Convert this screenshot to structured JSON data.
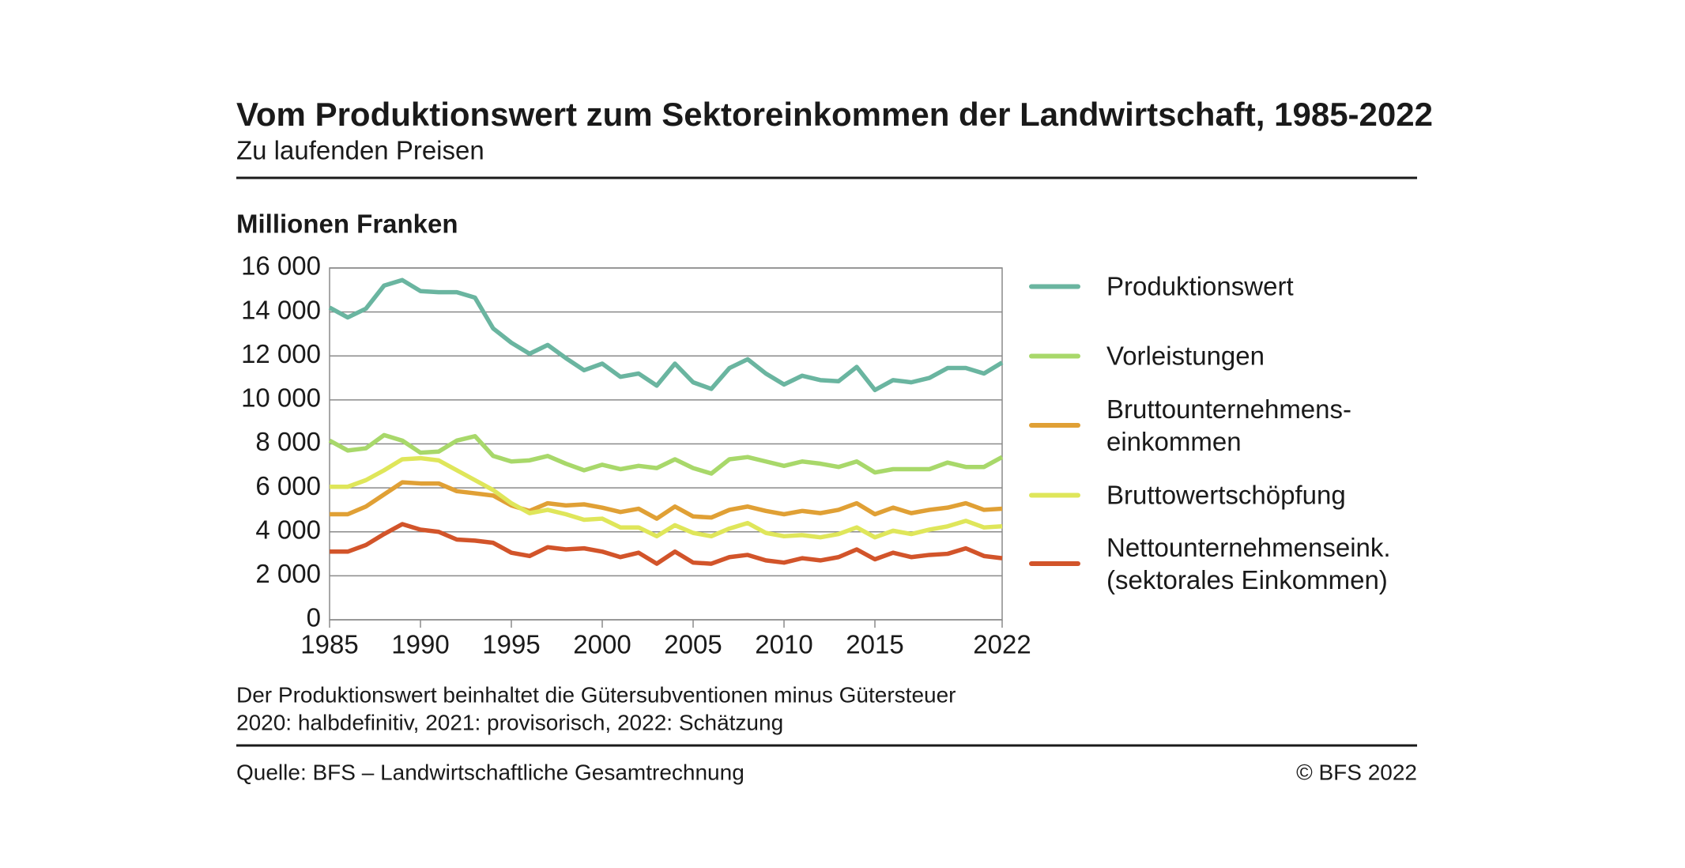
{
  "chart_data": {
    "type": "line",
    "title": "Vom Produktionswert zum Sektoreinkommen der Landwirtschaft, 1985-2022",
    "subtitle": "Zu laufenden Preisen",
    "y_label": "Millionen Franken",
    "notes": [
      "Der Produktionswert beinhaltet die Gütersubventionen minus Gütersteuer",
      "2020: halbdefinitiv, 2021: provisorisch, 2022: Schätzung"
    ],
    "source": "Quelle: BFS – Landwirtschaftliche Gesamtrechnung",
    "copyright": "© BFS 2022",
    "x": [
      1985,
      1986,
      1987,
      1988,
      1989,
      1990,
      1991,
      1992,
      1993,
      1994,
      1995,
      1996,
      1997,
      1998,
      1999,
      2000,
      2001,
      2002,
      2003,
      2004,
      2005,
      2006,
      2007,
      2008,
      2009,
      2010,
      2011,
      2012,
      2013,
      2014,
      2015,
      2016,
      2017,
      2018,
      2019,
      2020,
      2021,
      2022
    ],
    "xlim": [
      1985,
      2022
    ],
    "xticks": [
      1985,
      1990,
      1995,
      2000,
      2005,
      2010,
      2015,
      2022
    ],
    "ylim": [
      0,
      16000
    ],
    "yticks": [
      0,
      {
        "value": 2000,
        "label": "2 000"
      },
      {
        "value": 4000,
        "label": "4 000"
      },
      {
        "value": 6000,
        "label": "6 000"
      },
      {
        "value": 8000,
        "label": "8 000"
      },
      {
        "value": 10000,
        "label": "10 000"
      },
      {
        "value": 12000,
        "label": "12 000"
      },
      {
        "value": 14000,
        "label": "14 000"
      },
      {
        "value": 16000,
        "label": "16 000"
      }
    ],
    "grid": true,
    "legend": "right",
    "series": [
      {
        "name": "Produktionswert",
        "color": "#6ab5a0",
        "values": [
          14200,
          13750,
          14150,
          15200,
          15450,
          14950,
          14900,
          14900,
          14650,
          13250,
          12600,
          12100,
          12500,
          11900,
          11350,
          11650,
          11050,
          11200,
          10650,
          11650,
          10800,
          10500,
          11450,
          11850,
          11200,
          10700,
          11100,
          10900,
          10850,
          11500,
          10450,
          10900,
          10800,
          11000,
          11450,
          11450,
          11200,
          11700
        ]
      },
      {
        "name": "Vorleistungen",
        "color": "#a8d86a",
        "values": [
          8150,
          7700,
          7800,
          8400,
          8150,
          7600,
          7650,
          8150,
          8350,
          7450,
          7200,
          7250,
          7450,
          7100,
          6800,
          7050,
          6850,
          7000,
          6900,
          7300,
          6900,
          6650,
          7300,
          7400,
          7200,
          7000,
          7200,
          7100,
          6950,
          7200,
          6700,
          6850,
          6850,
          6850,
          7150,
          6950,
          6950,
          7400
        ]
      },
      {
        "name": "Bruttounternehmens-\neinkommen",
        "color": "#e0a035",
        "values": [
          4800,
          4800,
          5150,
          5700,
          6250,
          6200,
          6200,
          5850,
          5750,
          5650,
          5200,
          4950,
          5300,
          5200,
          5250,
          5100,
          4900,
          5050,
          4600,
          5150,
          4700,
          4650,
          5000,
          5150,
          4950,
          4800,
          4950,
          4850,
          5000,
          5300,
          4800,
          5100,
          4850,
          5000,
          5100,
          5300,
          5000,
          5050
        ]
      },
      {
        "name": "Bruttowertschöpfung",
        "color": "#dfe65a",
        "values": [
          6050,
          6050,
          6350,
          6800,
          7300,
          7350,
          7250,
          6800,
          6350,
          5900,
          5300,
          4850,
          5000,
          4800,
          4550,
          4600,
          4200,
          4200,
          3800,
          4300,
          3950,
          3800,
          4150,
          4400,
          3950,
          3800,
          3850,
          3750,
          3900,
          4200,
          3750,
          4050,
          3900,
          4100,
          4250,
          4500,
          4200,
          4250
        ]
      },
      {
        "name": "Nettounternehmenseink.\n(sektorales Einkommen)",
        "color": "#d2542a",
        "values": [
          3100,
          3100,
          3400,
          3900,
          4350,
          4100,
          4000,
          3650,
          3600,
          3500,
          3050,
          2900,
          3300,
          3200,
          3250,
          3100,
          2850,
          3050,
          2550,
          3100,
          2600,
          2550,
          2850,
          2950,
          2700,
          2600,
          2800,
          2700,
          2850,
          3200,
          2750,
          3050,
          2850,
          2950,
          3000,
          3250,
          2900,
          2800
        ]
      }
    ]
  }
}
